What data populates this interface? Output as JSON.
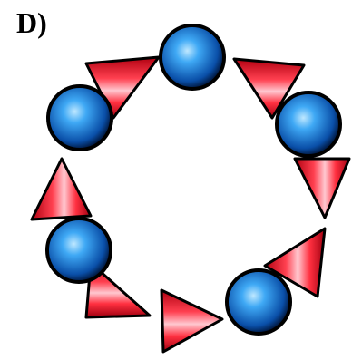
{
  "label": "D)"
}
